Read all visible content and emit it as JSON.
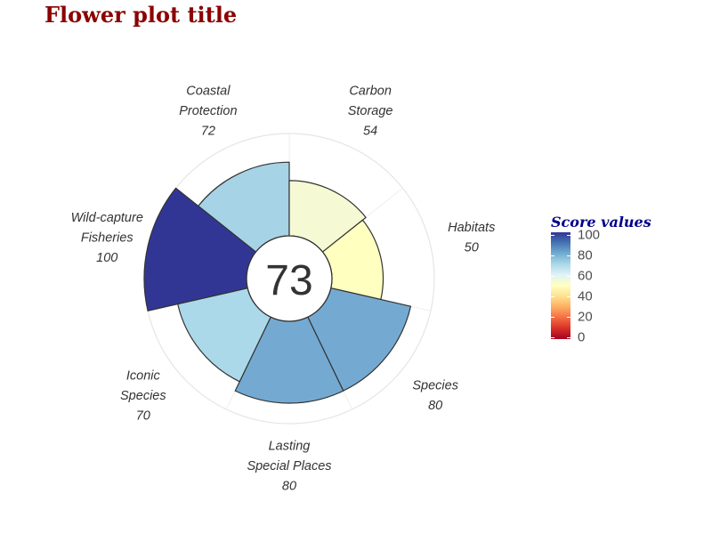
{
  "title": "Flower plot title",
  "chart_data": {
    "type": "flower",
    "center_score": "73",
    "max_value": 100,
    "petals": [
      {
        "label_lines": [
          "Coastal",
          "Protection"
        ],
        "value": 72,
        "color": "#a6d3e5"
      },
      {
        "label_lines": [
          "Carbon",
          "Storage"
        ],
        "value": 54,
        "color": "#f6fad4"
      },
      {
        "label_lines": [
          "Habitats"
        ],
        "value": 50,
        "color": "#ffffbf"
      },
      {
        "label_lines": [
          "Species"
        ],
        "value": 80,
        "color": "#74aad2"
      },
      {
        "label_lines": [
          "Lasting",
          "Special Places"
        ],
        "value": 80,
        "color": "#74aad2"
      },
      {
        "label_lines": [
          "Iconic",
          "Species"
        ],
        "value": 70,
        "color": "#abd9e9"
      },
      {
        "label_lines": [
          "Wild-capture",
          "Fisheries"
        ],
        "value": 100,
        "color": "#313695"
      }
    ]
  },
  "legend": {
    "title": "Score values",
    "ticks": [
      100,
      80,
      60,
      40,
      20,
      0
    ]
  }
}
